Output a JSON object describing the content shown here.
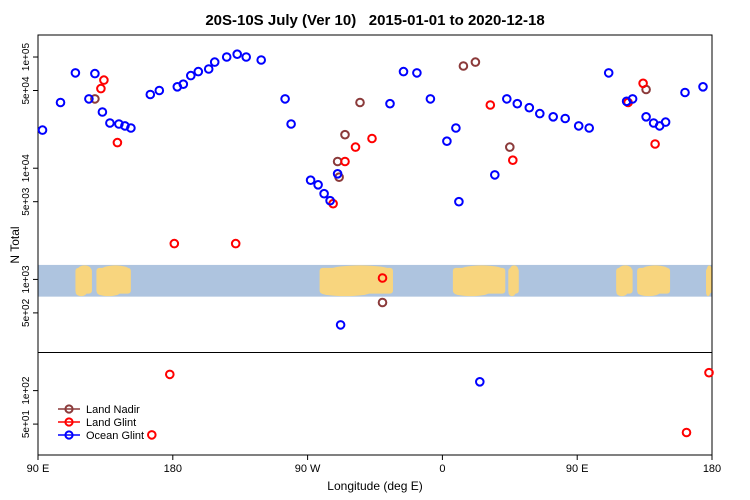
{
  "title": "20S-10S July (Ver 10)   2015-01-01 to 2020-12-18",
  "chart_data": {
    "type": "scatter",
    "title": "20S-10S July (Ver 10)   2015-01-01 to 2020-12-18",
    "xlabel": "Longitude (deg E)",
    "ylabel": "N Total",
    "x_axis": {
      "range": [
        90,
        540
      ],
      "wrap_note": "longitude axis spans 450 deg: 90E -> 180 -> 90W -> 0 -> 90E -> 180",
      "ticks": [
        {
          "pos": 90,
          "label": "90 E"
        },
        {
          "pos": 180,
          "label": "180"
        },
        {
          "pos": 270,
          "label": "90 W"
        },
        {
          "pos": 360,
          "label": "0"
        },
        {
          "pos": 450,
          "label": "90 E"
        },
        {
          "pos": 540,
          "label": "180"
        }
      ]
    },
    "y_axis": {
      "scale": "log10",
      "log_top": 5.198,
      "log_bottom": 1.42,
      "ticks": [
        {
          "value": 100000,
          "label": "1e+05"
        },
        {
          "value": 50000,
          "label": "5e+04"
        },
        {
          "value": 10000,
          "label": "1e+04"
        },
        {
          "value": 5000,
          "label": "5e+03"
        },
        {
          "value": 1000,
          "label": "1e+03"
        },
        {
          "value": 500,
          "label": "5e+02"
        },
        {
          "value": 100,
          "label": "1e+02"
        },
        {
          "value": 50,
          "label": "5e+01"
        }
      ]
    },
    "divider_value": 220,
    "map_band": {
      "description": "20S-10S latitude strip world map",
      "n_top": 1350,
      "n_bottom": 700,
      "ocean_color": "#aec4df",
      "land_color": "#f8d57e",
      "land_lon_ranges": [
        [
          115,
          126
        ],
        [
          129,
          152
        ],
        [
          278,
          327
        ],
        [
          367,
          402
        ],
        [
          404,
          411
        ],
        [
          476,
          487
        ],
        [
          490,
          512
        ],
        [
          536,
          540
        ]
      ]
    },
    "series": [
      {
        "name": "Land Nadir",
        "color": "#8b3a3a",
        "points": [
          [
            128,
            42000
          ],
          [
            305,
            39000
          ],
          [
            295,
            20000
          ],
          [
            290,
            11500
          ],
          [
            291,
            8300
          ],
          [
            374,
            83000
          ],
          [
            382,
            90000
          ],
          [
            405,
            15500
          ],
          [
            496,
            51000
          ],
          [
            320,
            620
          ]
        ]
      },
      {
        "name": "Land Glint",
        "color": "#ff0000",
        "points": [
          [
            134,
            62000
          ],
          [
            132,
            52000
          ],
          [
            143,
            17000
          ],
          [
            181,
            2100
          ],
          [
            222,
            2100
          ],
          [
            287,
            4800
          ],
          [
            295,
            11500
          ],
          [
            302,
            15500
          ],
          [
            313,
            18500
          ],
          [
            320,
            1030
          ],
          [
            392,
            37000
          ],
          [
            407,
            11800
          ],
          [
            484,
            39000
          ],
          [
            494,
            58000
          ],
          [
            502,
            16500
          ],
          [
            178,
            140
          ],
          [
            166,
            40
          ],
          [
            538,
            145
          ],
          [
            523,
            42
          ]
        ]
      },
      {
        "name": "Ocean Glint",
        "color": "#0000ff",
        "points": [
          [
            93,
            22000
          ],
          [
            105,
            39000
          ],
          [
            115,
            72000
          ],
          [
            124,
            42000
          ],
          [
            128,
            71000
          ],
          [
            133,
            32000
          ],
          [
            138,
            25500
          ],
          [
            144,
            25000
          ],
          [
            148,
            24000
          ],
          [
            152,
            23000
          ],
          [
            165,
            46000
          ],
          [
            171,
            50000
          ],
          [
            183,
            54000
          ],
          [
            187,
            57000
          ],
          [
            192,
            68000
          ],
          [
            197,
            74000
          ],
          [
            204,
            78000
          ],
          [
            208,
            90000
          ],
          [
            216,
            100000
          ],
          [
            223,
            106000
          ],
          [
            229,
            100000
          ],
          [
            239,
            94000
          ],
          [
            255,
            42000
          ],
          [
            259,
            25000
          ],
          [
            272,
            7800
          ],
          [
            277,
            7100
          ],
          [
            281,
            5900
          ],
          [
            285,
            5100
          ],
          [
            290,
            8900
          ],
          [
            325,
            38000
          ],
          [
            334,
            74000
          ],
          [
            343,
            72000
          ],
          [
            352,
            42000
          ],
          [
            363,
            17500
          ],
          [
            369,
            23000
          ],
          [
            371,
            5000
          ],
          [
            395,
            8700
          ],
          [
            403,
            42000
          ],
          [
            410,
            38000
          ],
          [
            418,
            35000
          ],
          [
            425,
            31000
          ],
          [
            434,
            29000
          ],
          [
            442,
            28000
          ],
          [
            451,
            24000
          ],
          [
            458,
            23000
          ],
          [
            471,
            72000
          ],
          [
            483,
            40000
          ],
          [
            487,
            42000
          ],
          [
            496,
            29000
          ],
          [
            501,
            25500
          ],
          [
            505,
            24000
          ],
          [
            509,
            26000
          ],
          [
            522,
            48000
          ],
          [
            534,
            54000
          ],
          [
            292,
            390
          ],
          [
            385,
            120
          ]
        ]
      }
    ]
  },
  "legend": {
    "items": [
      {
        "label": "Land Nadir",
        "color": "#8b3a3a"
      },
      {
        "label": "Land Glint",
        "color": "#ff0000"
      },
      {
        "label": "Ocean Glint",
        "color": "#0000ff"
      }
    ]
  }
}
